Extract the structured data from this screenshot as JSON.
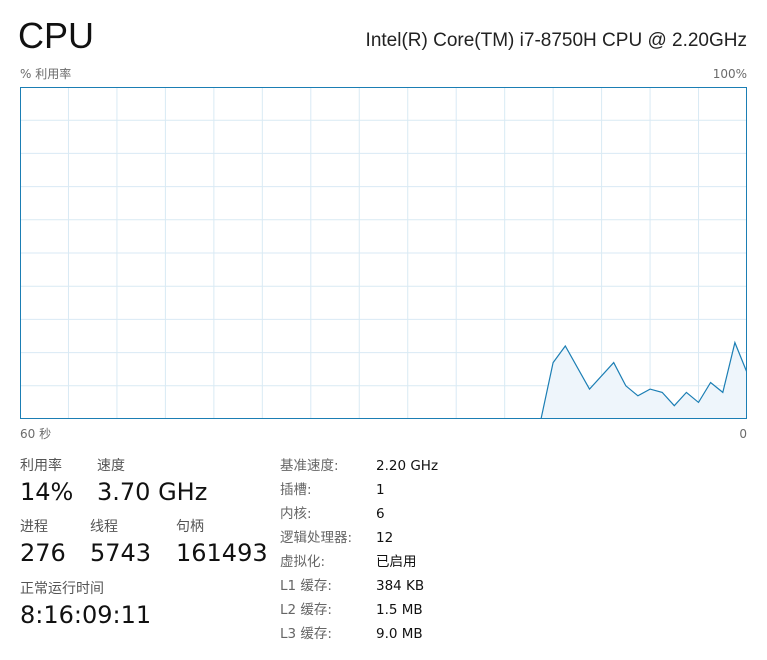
{
  "header": {
    "title": "CPU",
    "model": "Intel(R) Core(TM) i7-8750H CPU @ 2.20GHz"
  },
  "graph": {
    "y_label": "% 利用率",
    "y_max_label": "100%",
    "x_left_label": "60 秒",
    "x_right_label": "0",
    "line_color": "#1b7eb4",
    "fill_color": "#eef5fb",
    "grid_color": "#d9eaf4",
    "border_color": "#1b7eb4"
  },
  "chart_data": {
    "type": "area",
    "x_unit": "seconds ago",
    "y_unit": "%",
    "xlim": [
      60,
      0
    ],
    "ylim": [
      0,
      100
    ],
    "x": [
      60,
      17,
      16,
      15,
      13,
      11,
      10,
      9,
      8,
      7,
      6,
      5,
      4,
      3,
      2,
      1,
      0
    ],
    "values": [
      0,
      0,
      17,
      22,
      9,
      17,
      10,
      7,
      9,
      8,
      4,
      8,
      5,
      11,
      8,
      23,
      14
    ]
  },
  "stats": {
    "utilization_label": "利用率",
    "utilization_value": "14%",
    "speed_label": "速度",
    "speed_value": "3.70 GHz",
    "processes_label": "进程",
    "processes_value": "276",
    "threads_label": "线程",
    "threads_value": "5743",
    "handles_label": "句柄",
    "handles_value": "161493",
    "uptime_label": "正常运行时间",
    "uptime_value": "8:16:09:11"
  },
  "specs": [
    {
      "label": "基准速度:",
      "value": "2.20 GHz"
    },
    {
      "label": "插槽:",
      "value": "1"
    },
    {
      "label": "内核:",
      "value": "6"
    },
    {
      "label": "逻辑处理器:",
      "value": "12"
    },
    {
      "label": "虚拟化:",
      "value": "已启用"
    },
    {
      "label": "L1 缓存:",
      "value": "384 KB"
    },
    {
      "label": "L2 缓存:",
      "value": "1.5 MB"
    },
    {
      "label": "L3 缓存:",
      "value": "9.0 MB"
    }
  ]
}
